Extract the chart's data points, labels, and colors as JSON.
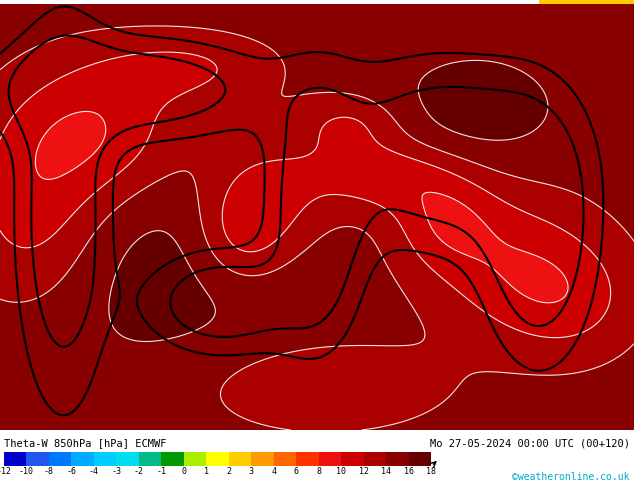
{
  "title_left": "Theta-W 850hPa [hPa] ECMWF",
  "title_right": "Mo 27-05-2024 00:00 UTC (00+120)",
  "credit": "©weatheronline.co.uk",
  "colorbar_levels": [
    -12,
    -10,
    -8,
    -6,
    -4,
    -3,
    -2,
    -1,
    0,
    1,
    2,
    3,
    4,
    6,
    8,
    10,
    12,
    14,
    16,
    18
  ],
  "colorbar_colors": [
    "#0000cd",
    "#2255ee",
    "#0077ff",
    "#00aaff",
    "#00ccff",
    "#00ddee",
    "#00bb88",
    "#009900",
    "#aaee00",
    "#ffff00",
    "#ffcc00",
    "#ff9900",
    "#ff6600",
    "#ff3300",
    "#ee1111",
    "#cc0000",
    "#aa0000",
    "#880000",
    "#660000"
  ],
  "map_color": "#cc0000",
  "map_bright_color": "#ff1111",
  "map_dark_color": "#880000",
  "top_stripe_color": "#00cc00",
  "top_stripe_right_color": "#ffcc00",
  "bottom_bg": "#ffffff",
  "fig_width": 6.34,
  "fig_height": 4.9,
  "dpi": 100
}
